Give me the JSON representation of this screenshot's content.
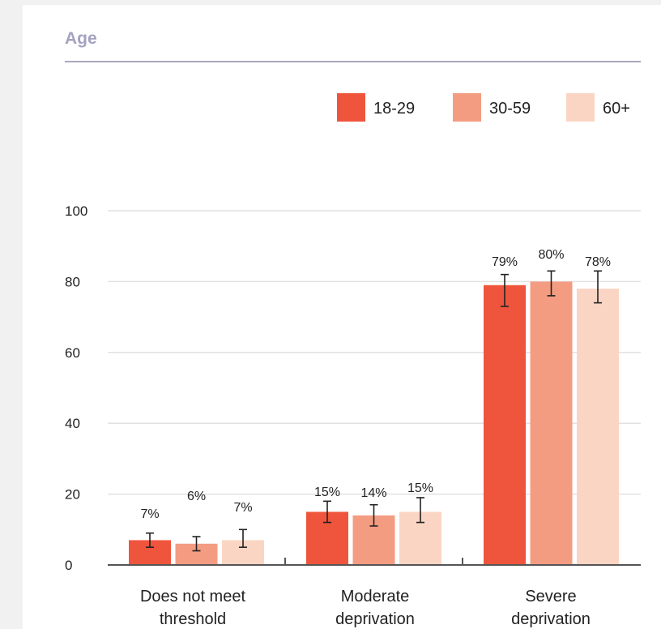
{
  "section_title": "Age",
  "colors": {
    "series": [
      "#ef553d",
      "#f49c82",
      "#fbd5c4"
    ],
    "grid": "#e2e2e2",
    "axis": "#555555",
    "error_bar": "#222222",
    "text": "#222222"
  },
  "chart_data": {
    "type": "bar",
    "title": "",
    "xlabel": "",
    "ylabel": "",
    "ylim": [
      0,
      100
    ],
    "yticks": [
      0,
      20,
      40,
      60,
      80,
      100
    ],
    "grid": true,
    "legend_position": "top-right",
    "categories": [
      [
        "Does not meet",
        "threshold"
      ],
      [
        "Moderate",
        "deprivation"
      ],
      [
        "Severe",
        "deprivation"
      ]
    ],
    "series": [
      {
        "name": "18-29",
        "values": [
          7,
          15,
          79
        ],
        "labels": [
          "7%",
          "15%",
          "79%"
        ],
        "error_low": [
          5,
          12,
          73
        ],
        "error_high": [
          9,
          18,
          82
        ]
      },
      {
        "name": "30-59",
        "values": [
          6,
          14,
          80
        ],
        "labels": [
          "6%",
          "14%",
          "80%"
        ],
        "error_low": [
          4,
          11,
          76
        ],
        "error_high": [
          8,
          17,
          83
        ]
      },
      {
        "name": "60+",
        "values": [
          7,
          15,
          78
        ],
        "labels": [
          "7%",
          "15%",
          "78%"
        ],
        "error_low": [
          5,
          12,
          74
        ],
        "error_high": [
          10,
          19,
          83
        ]
      }
    ]
  }
}
